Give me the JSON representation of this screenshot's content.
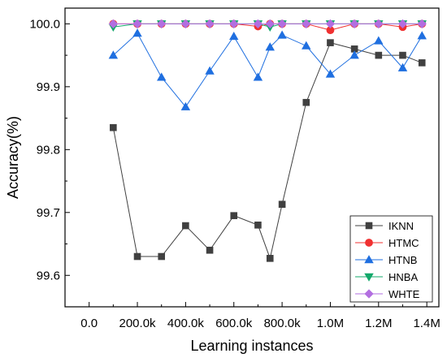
{
  "chart_data": {
    "type": "line",
    "title": "",
    "xlabel": "Learning instances",
    "ylabel": "Accuracy(%)",
    "xlim": [
      -100000,
      1450000
    ],
    "ylim": [
      99.55,
      100.025
    ],
    "xticks": [
      0,
      200000,
      400000,
      600000,
      800000,
      1000000,
      1200000,
      1400000
    ],
    "xtick_labels": [
      "0.0",
      "200.0k",
      "400.0k",
      "600.0k",
      "800.0k",
      "1.0M",
      "1.2M",
      "1.4M"
    ],
    "yticks": [
      99.6,
      99.7,
      99.8,
      99.9,
      100.0
    ],
    "ytick_labels": [
      "99.6",
      "99.7",
      "99.8",
      "99.9",
      "100.0"
    ],
    "grid": false,
    "legend_position": "bottom-right",
    "x": [
      100000,
      200000,
      300000,
      400000,
      500000,
      600000,
      700000,
      750000,
      800000,
      900000,
      1000000,
      1100000,
      1200000,
      1300000,
      1380000
    ],
    "series": [
      {
        "name": "IKNN",
        "color": "#404040",
        "marker": "square",
        "values": [
          99.835,
          99.63,
          99.63,
          99.679,
          99.64,
          99.695,
          99.68,
          99.627,
          99.713,
          99.875,
          99.97,
          99.96,
          99.95,
          99.95,
          99.938
        ]
      },
      {
        "name": "HTMC",
        "color": "#f03030",
        "marker": "circle",
        "values": [
          100.0,
          100.0,
          100.0,
          100.0,
          100.0,
          100.0,
          99.996,
          100.0,
          100.0,
          100.0,
          99.99,
          100.0,
          100.0,
          99.995,
          100.0
        ]
      },
      {
        "name": "HTNB",
        "color": "#1f6fe0",
        "marker": "triangle-up",
        "values": [
          99.95,
          99.985,
          99.915,
          99.868,
          99.925,
          99.98,
          99.915,
          99.963,
          99.982,
          99.965,
          99.92,
          99.95,
          99.973,
          99.93,
          99.981
        ]
      },
      {
        "name": "HNBA",
        "color": "#13a86b",
        "marker": "triangle-down",
        "values": [
          99.995,
          100.0,
          100.0,
          100.0,
          100.0,
          100.0,
          100.0,
          99.995,
          100.0,
          100.0,
          100.0,
          100.0,
          100.0,
          100.0,
          100.0
        ]
      },
      {
        "name": "WHTE",
        "color": "#b26ee0",
        "marker": "diamond",
        "values": [
          100.0,
          100.0,
          100.0,
          100.0,
          100.0,
          100.0,
          100.0,
          100.0,
          100.0,
          100.0,
          100.0,
          100.0,
          100.0,
          100.0,
          100.0
        ]
      }
    ]
  }
}
